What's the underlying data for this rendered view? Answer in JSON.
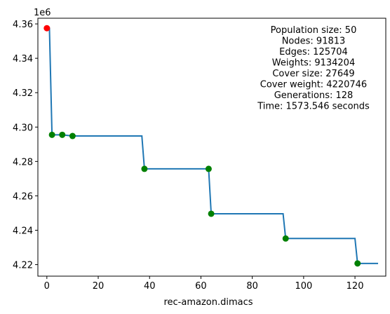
{
  "chart_data": {
    "type": "line",
    "xlabel": "rec-amazon.dimacs",
    "ylabel": "",
    "y_offset_label": "1e6",
    "y_multiplier": 1000000,
    "xlim": [
      -3.5,
      132
    ],
    "ylim": [
      4.2133,
      4.3633
    ],
    "x_ticks": [
      0,
      20,
      40,
      60,
      80,
      100,
      120
    ],
    "x_tick_labels": [
      "0",
      "20",
      "40",
      "60",
      "80",
      "100",
      "120"
    ],
    "y_ticks": [
      4.22,
      4.24,
      4.26,
      4.28,
      4.3,
      4.32,
      4.34,
      4.36
    ],
    "y_tick_labels": [
      "4.22",
      "4.24",
      "4.26",
      "4.28",
      "4.30",
      "4.32",
      "4.34",
      "4.36"
    ],
    "grid": false,
    "line_color": "#1f77b4",
    "series": [
      {
        "x": [
          0,
          1,
          2,
          6,
          10,
          37,
          38,
          63,
          64,
          92,
          93,
          120,
          121,
          129
        ],
        "y": [
          4.3575,
          4.3575,
          4.2955,
          4.2955,
          4.2948,
          4.2948,
          4.2757,
          4.2757,
          4.2496,
          4.2496,
          4.2352,
          4.2352,
          4.2207,
          4.2207
        ]
      }
    ],
    "markers": {
      "initial": {
        "color": "#ff0000",
        "points": [
          [
            0,
            4.3575
          ]
        ]
      },
      "improvements": {
        "color": "#008000",
        "points": [
          [
            2,
            4.2955
          ],
          [
            6,
            4.2955
          ],
          [
            10,
            4.2948
          ],
          [
            38,
            4.2757
          ],
          [
            63,
            4.2757
          ],
          [
            64,
            4.2496
          ],
          [
            93,
            4.2352
          ],
          [
            121,
            4.2207
          ]
        ]
      }
    },
    "annotations": [
      "Population size: 50",
      "Nodes: 91813",
      "Edges: 125704",
      "Weights: 9134204",
      "Cover size: 27649",
      "Cover weight: 4220746",
      "Generations: 128",
      "Time: 1573.546 seconds"
    ]
  }
}
